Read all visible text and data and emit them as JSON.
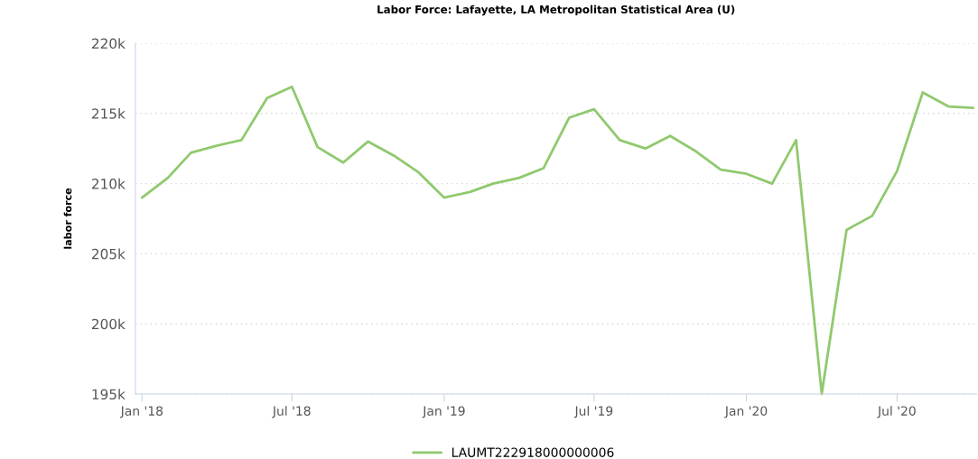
{
  "chart_data": {
    "type": "line",
    "title": "Labor Force: Lafayette, LA Metropolitan Statistical Area (U)",
    "ylabel": "labor force",
    "x": [
      "2018-01",
      "2018-02",
      "2018-03",
      "2018-04",
      "2018-05",
      "2018-06",
      "2018-07",
      "2018-08",
      "2018-09",
      "2018-10",
      "2018-11",
      "2018-12",
      "2019-01",
      "2019-02",
      "2019-03",
      "2019-04",
      "2019-05",
      "2019-06",
      "2019-07",
      "2019-08",
      "2019-09",
      "2019-10",
      "2019-11",
      "2019-12",
      "2020-01",
      "2020-02",
      "2020-03",
      "2020-04",
      "2020-05",
      "2020-06",
      "2020-07",
      "2020-08",
      "2020-09",
      "2020-10"
    ],
    "series": [
      {
        "name": "LAUMT222918000000006",
        "color": "#90c96e",
        "values": [
          209000,
          210400,
          212200,
          212700,
          213100,
          216100,
          216900,
          212600,
          211500,
          213000,
          212000,
          210800,
          209000,
          209400,
          210000,
          210400,
          211100,
          214700,
          215300,
          213100,
          212500,
          213400,
          212300,
          211000,
          210700,
          210000,
          213100,
          195000,
          206700,
          207700,
          210900,
          216500,
          215500,
          215400
        ]
      }
    ],
    "xlim": [
      "2017-12-24",
      "2020-10-05"
    ],
    "xticks": [
      {
        "value": "2018-01",
        "label": "Jan '18"
      },
      {
        "value": "2018-07",
        "label": "Jul '18"
      },
      {
        "value": "2019-01",
        "label": "Jan '19"
      },
      {
        "value": "2019-07",
        "label": "Jul '19"
      },
      {
        "value": "2020-01",
        "label": "Jan '20"
      },
      {
        "value": "2020-07",
        "label": "Jul '20"
      }
    ],
    "ylim": [
      195000,
      220000
    ],
    "yticks": [
      {
        "value": 195000,
        "label": "195k"
      },
      {
        "value": 200000,
        "label": "200k"
      },
      {
        "value": 205000,
        "label": "205k"
      },
      {
        "value": 210000,
        "label": "210k"
      },
      {
        "value": 215000,
        "label": "215k"
      },
      {
        "value": 220000,
        "label": "220k"
      }
    ],
    "grid": "y",
    "legend": "bottom",
    "marker": "none",
    "line_style": "solid"
  }
}
